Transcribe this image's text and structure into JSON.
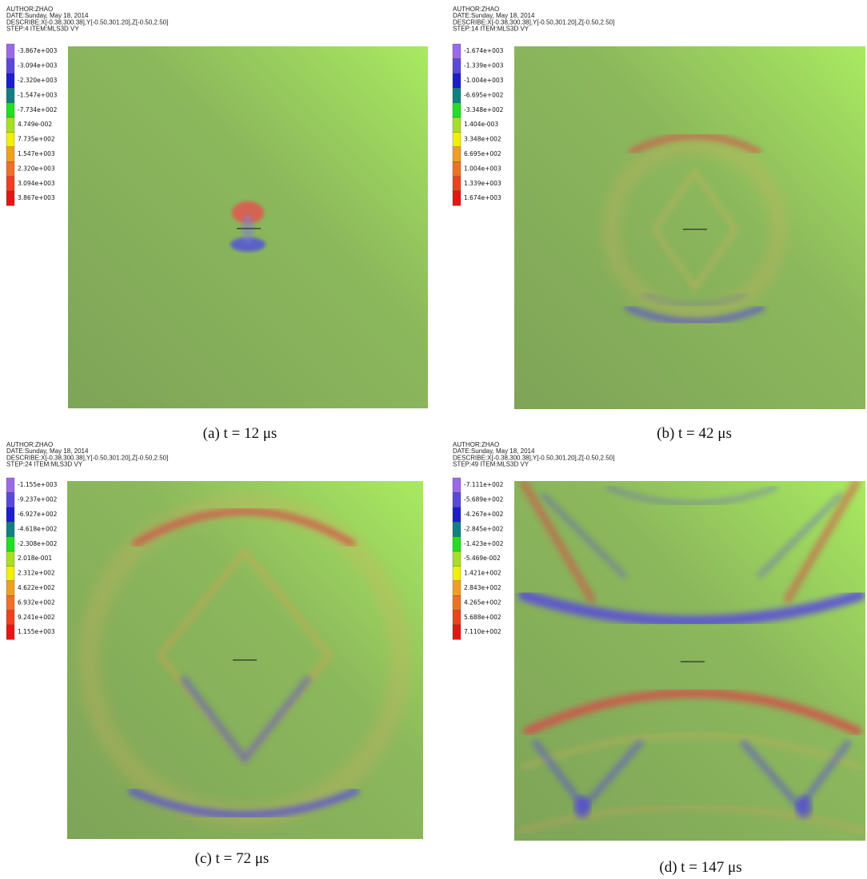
{
  "legend_colors": [
    "#9a6ae8",
    "#5a48e0",
    "#1c1cd0",
    "#128080",
    "#20e020",
    "#a8e020",
    "#f0f000",
    "#f0a020",
    "#f07028",
    "#f04020",
    "#e81414"
  ],
  "panels": [
    {
      "header": [
        "AUTHOR:ZHAO",
        "DATE:Sunday, May 18, 2014",
        "DESCRIBE:X[-0.38,300.38],Y[-0.50,301.20],Z[-0.50,2.50]",
        "STEP:4 ITEM:MLS3D VY"
      ],
      "legend": [
        "-3.867e+003",
        "-3.094e+003",
        "-2.320e+003",
        "-1.547e+003",
        "-7.734e+002",
        "4.749e-002",
        "7.735e+002",
        "1.547e+003",
        "2.320e+003",
        "3.094e+003",
        "3.867e+003"
      ],
      "caption": "(a) t = 12 μs"
    },
    {
      "header": [
        "AUTHOR:ZHAO",
        "DATE:Sunday, May 18, 2014",
        "DESCRIBE:X[-0.38,300.38],Y[-0.50,301.20],Z[-0.50,2.50]",
        "STEP:14 ITEM:MLS3D VY"
      ],
      "legend": [
        "-1.674e+003",
        "-1.339e+003",
        "-1.004e+003",
        "-6.695e+002",
        "-3.348e+002",
        "1.404e-003",
        "3.348e+002",
        "6.695e+002",
        "1.004e+003",
        "1.339e+003",
        "1.674e+003"
      ],
      "caption": "(b) t = 42 μs"
    },
    {
      "header": [
        "AUTHOR:ZHAO",
        "DATE:Sunday, May 18, 2014",
        "DESCRIBE:X[-0.38,300.38],Y[-0.50,301.20],Z[-0.50,2.50]",
        "STEP:24 ITEM:MLS3D VY"
      ],
      "legend": [
        "-1.155e+003",
        "-9.237e+002",
        "-6.927e+002",
        "-4.618e+002",
        "-2.308e+002",
        "2.018e-001",
        "2.312e+002",
        "4.622e+002",
        "6.932e+002",
        "9.241e+002",
        "1.155e+003"
      ],
      "caption": "(c) t = 72 μs"
    },
    {
      "header": [
        "AUTHOR:ZHAO",
        "DATE:Sunday, May 18, 2014",
        "DESCRIBE:X[-0.38,300.38],Y[-0.50,301.20],Z[-0.50,2.50]",
        "STEP:49 ITEM:MLS3D VY"
      ],
      "legend": [
        "-7.111e+002",
        "-5.689e+002",
        "-4.267e+002",
        "-2.845e+002",
        "-1.423e+002",
        "-5.469e-002",
        "1.421e+002",
        "2.843e+002",
        "4.265e+002",
        "5.688e+002",
        "7.110e+002"
      ],
      "caption": "(d) t = 147 μs"
    }
  ]
}
